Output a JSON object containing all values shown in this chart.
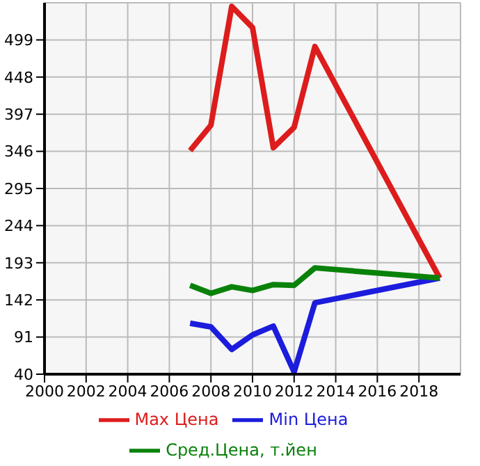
{
  "chart_data": {
    "type": "line",
    "x": [
      2007,
      2008,
      2009,
      2010,
      2011,
      2012,
      2013,
      2019
    ],
    "series": [
      {
        "name": "Max Цена",
        "color": "#dd1c1c",
        "values": [
          347,
          382,
          545,
          516,
          351,
          379,
          490,
          172
        ]
      },
      {
        "name": "Min Цена",
        "color": "#1c1cdd",
        "values": [
          110,
          105,
          74,
          94,
          106,
          43,
          138,
          172
        ]
      },
      {
        "name": "Сред.Цена, т.йен",
        "color": "#0a820a",
        "values": [
          162,
          151,
          160,
          155,
          163,
          162,
          186,
          172
        ]
      }
    ],
    "xlim": [
      2000,
      2020
    ],
    "xticks": [
      2000,
      2002,
      2004,
      2006,
      2008,
      2010,
      2012,
      2014,
      2016,
      2018
    ],
    "ylim": [
      40,
      550
    ],
    "yticks": [
      40,
      91,
      142,
      193,
      244,
      295,
      346,
      397,
      448,
      499
    ],
    "grid": true,
    "legend": "bottom",
    "marker": "none",
    "line_style": "solid"
  }
}
